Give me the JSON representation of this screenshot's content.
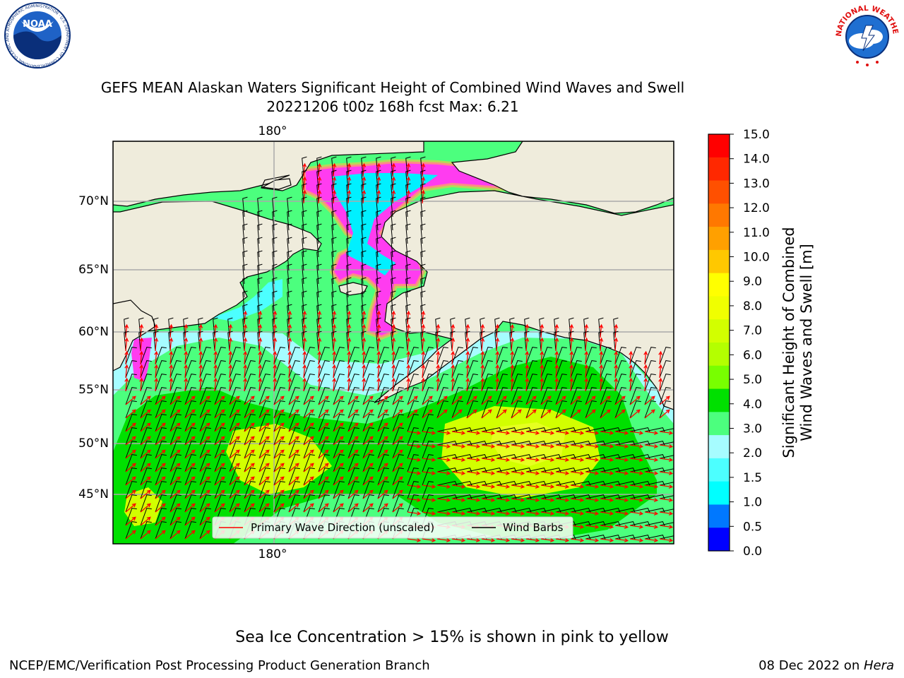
{
  "header": {
    "title": "GEFS MEAN Alaskan Waters Significant Height of Combined Wind Waves and Swell",
    "subtitle": "20221206 t00z 168h fcst   Max: 6.21",
    "noaa_logo_text": "NOAA",
    "noaa_ring_text": "NATIONAL OCEANIC AND ATMOSPHERIC ADMINISTRATION · U.S. DEPARTMENT OF COMMERCE",
    "nws_ring_text": "NATIONAL WEATHER SERVICE"
  },
  "map": {
    "lon_label_top": "180°",
    "lon_label_bottom": "180°",
    "lat_labels": [
      "70°N",
      "65°N",
      "60°N",
      "55°N",
      "50°N",
      "45°N"
    ],
    "legend": {
      "wave_direction": "Primary Wave Direction (unscaled)",
      "wind_barbs": "Wind Barbs"
    },
    "colors": {
      "land": "#efecdc",
      "ocean_low": "#a6fcff",
      "ocean_mid": "#4cff7e",
      "ocean_high": "#00e000",
      "ocean_peak": "#d2ff00",
      "sea_ice": "#ff3cf0",
      "arrow": "#ff0000"
    }
  },
  "colorbar": {
    "label_line1": "Significant Height of Combined",
    "label_line2": "Wind Waves and Swell [m]",
    "ticks": [
      "15.0",
      "14.0",
      "13.0",
      "12.0",
      "11.0",
      "10.0",
      "9.0",
      "8.0",
      "7.0",
      "6.0",
      "5.0",
      "4.0",
      "3.0",
      "2.0",
      "1.5",
      "1.0",
      "0.5",
      "0.0"
    ],
    "bands": [
      "#ff0000",
      "#ff2800",
      "#ff5000",
      "#ff7800",
      "#ffa000",
      "#ffc800",
      "#ffff00",
      "#f0ff00",
      "#d2ff00",
      "#b4ff00",
      "#78ff00",
      "#00e000",
      "#4cff7e",
      "#a6fcff",
      "#4cffff",
      "#00ffff",
      "#0078ff",
      "#0000ff"
    ]
  },
  "footer": {
    "sea_ice_note": "Sea Ice Concentration > 15% is shown in pink to yellow",
    "credit_left": "NCEP/EMC/Verification Post Processing Product Generation Branch",
    "date": "08 Dec 2022 on ",
    "machine": "Hera"
  }
}
